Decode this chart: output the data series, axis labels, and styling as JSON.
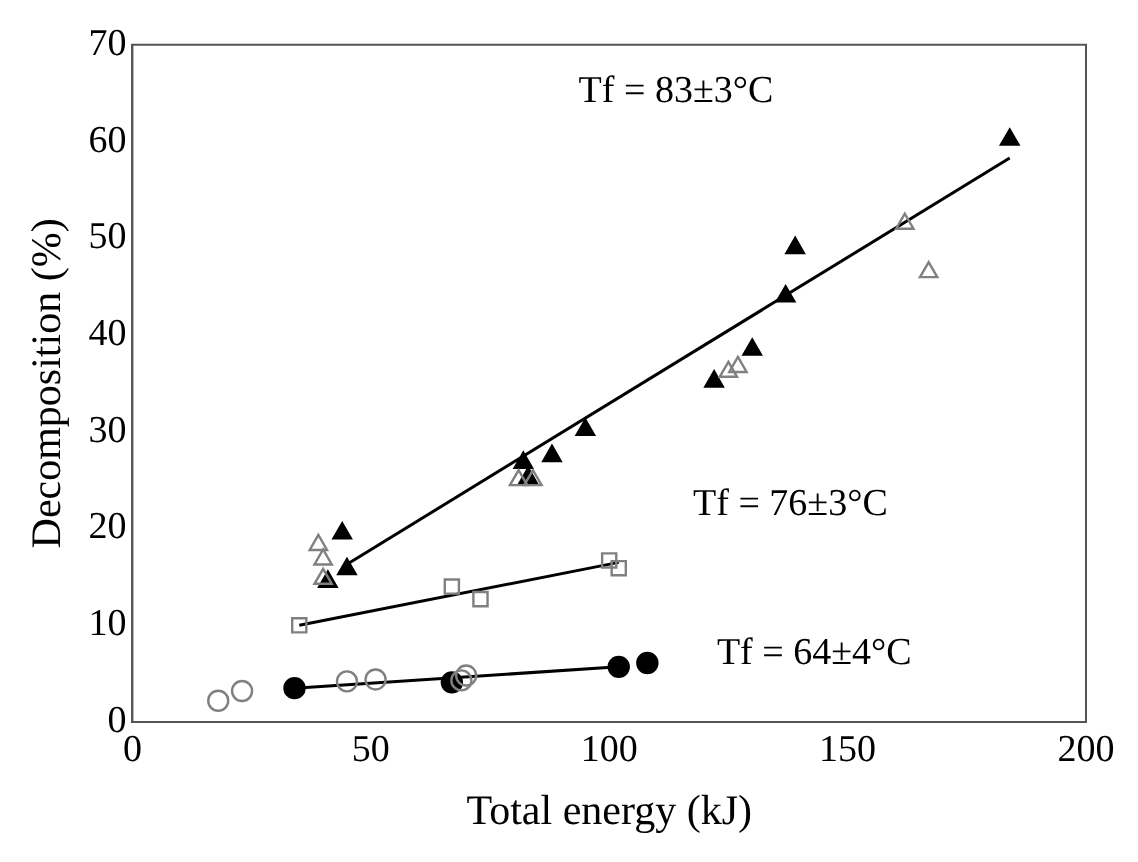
{
  "chart_data": {
    "type": "scatter",
    "xlabel": "Total energy (kJ)",
    "ylabel": "Decomposition (%)",
    "xlim": [
      0,
      200
    ],
    "xticks": [
      0,
      50,
      100,
      150,
      200
    ],
    "ylim": [
      0,
      70
    ],
    "yticks": [
      0,
      10,
      20,
      30,
      40,
      50,
      60,
      70
    ],
    "grid": false,
    "legend": false,
    "series": [
      {
        "color": "#000000",
        "marker": "triangle",
        "x": [
          41,
          44,
          45,
          82,
          83,
          88,
          95,
          122,
          130,
          137,
          139,
          184
        ],
        "values": [
          14.5,
          19.5,
          15.8,
          26.8,
          25.2,
          27.5,
          30.2,
          35.2,
          38.5,
          44,
          49,
          60.2
        ]
      },
      {
        "color": "#808080",
        "marker": "triangle",
        "x": [
          39,
          40,
          40,
          81,
          84,
          125,
          127,
          162,
          167
        ],
        "values": [
          18.3,
          16.8,
          14.8,
          25,
          25,
          36.2,
          36.7,
          51.5,
          46.5
        ]
      },
      {
        "color": "#808080",
        "marker": "square",
        "x": [
          35,
          67,
          73,
          100,
          102
        ],
        "values": [
          10,
          14,
          12.7,
          16.7,
          15.9
        ]
      },
      {
        "color": "#808080",
        "marker": "circle",
        "x": [
          18,
          23,
          45,
          51,
          69,
          70
        ],
        "values": [
          2.2,
          3.2,
          4.2,
          4.4,
          4.3,
          4.8
        ]
      },
      {
        "color": "#000000",
        "marker": "circle",
        "x": [
          34,
          67,
          102,
          108
        ],
        "values": [
          3.5,
          4.1,
          5.7,
          6.1
        ]
      },
      {
        "type": "line",
        "color": "#000000",
        "marker": "none",
        "x": [
          44,
          184
        ],
        "values": [
          16,
          58.3
        ]
      },
      {
        "type": "line",
        "color": "#000000",
        "marker": "none",
        "x": [
          35,
          102
        ],
        "values": [
          10,
          16.5
        ]
      },
      {
        "type": "line",
        "color": "#000000",
        "marker": "none",
        "x": [
          34,
          102
        ],
        "values": [
          3.5,
          5.7
        ]
      }
    ],
    "annotations": [
      "Tf = 83±3°C",
      "Tf = 76±3°C",
      "Tf = 64±4°C"
    ]
  }
}
